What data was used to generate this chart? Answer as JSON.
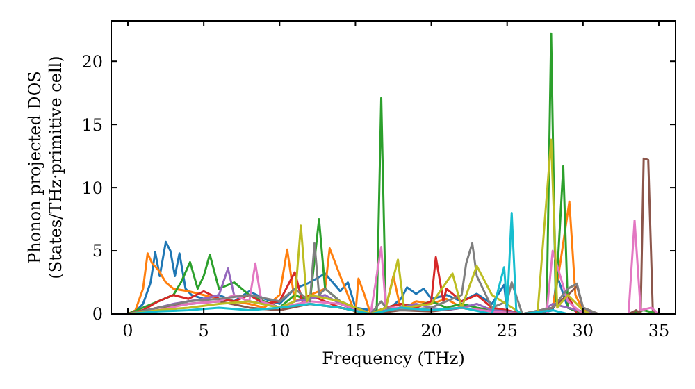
{
  "chart_data": {
    "type": "line",
    "xlabel": "Frequency (THz)",
    "ylabel": "Phonon projected DOS\n(States/THz·primitive cell)",
    "xlim": [
      -1.1,
      36.1
    ],
    "ylim": [
      0,
      23.2
    ],
    "xticks": [
      0,
      5,
      10,
      15,
      20,
      25,
      30,
      35
    ],
    "yticks": [
      0,
      5,
      10,
      15,
      20
    ],
    "line_style": "solid",
    "series": [
      {
        "color": "#1f77b4",
        "x": [
          0,
          0.5,
          1,
          1.5,
          1.8,
          2.1,
          2.5,
          2.8,
          3.1,
          3.4,
          3.8,
          4.2,
          5,
          6,
          7,
          8,
          9,
          10,
          11,
          12,
          13,
          14,
          14.5,
          15,
          16,
          17,
          18,
          18.4,
          19,
          19.5,
          20,
          21,
          22,
          23,
          24,
          24.8,
          25,
          26,
          27,
          28,
          28.3,
          29,
          30
        ],
        "values": [
          0,
          0.2,
          0.8,
          2.5,
          4.9,
          3,
          5.7,
          5,
          3,
          4.8,
          2,
          1.5,
          1.2,
          1.5,
          1,
          1.8,
          1.2,
          0.8,
          2,
          2.5,
          3.2,
          1.8,
          2.5,
          0.5,
          0.3,
          0.2,
          1.2,
          2.1,
          1.6,
          2,
          1.2,
          1.5,
          1,
          1.6,
          0.8,
          2.3,
          0.2,
          0,
          0,
          0.3,
          3,
          0.5,
          0
        ]
      },
      {
        "color": "#ff7f0e",
        "x": [
          0,
          0.5,
          1,
          1.3,
          1.6,
          2,
          2.5,
          3,
          4,
          5,
          6,
          7,
          8,
          9,
          10,
          10.5,
          11,
          12,
          13,
          13.3,
          14,
          15,
          15.2,
          15.6,
          16,
          17,
          17.5,
          18,
          19,
          20,
          21,
          22,
          23,
          24,
          25,
          26,
          27,
          28,
          28.5,
          29.1,
          29.5,
          30,
          31
        ],
        "values": [
          0,
          0.3,
          2,
          4.8,
          4,
          3.5,
          2.5,
          2,
          1.8,
          1.5,
          1.2,
          1,
          0.8,
          0.5,
          1.5,
          5.1,
          1,
          1.5,
          2,
          5.2,
          3,
          0,
          2.8,
          1.5,
          0,
          0.5,
          3,
          0.3,
          1,
          0.8,
          1.2,
          0.5,
          0.3,
          0.5,
          0.2,
          0,
          0,
          0.5,
          4,
          8.9,
          1.5,
          0.3,
          0
        ]
      },
      {
        "color": "#2ca02c",
        "x": [
          0,
          1,
          2,
          3,
          3.5,
          4.1,
          4.6,
          5,
          5.4,
          6,
          7,
          8,
          9,
          10,
          11,
          12,
          12.6,
          13,
          14,
          15,
          16,
          16.4,
          16.7,
          17,
          18,
          19,
          20,
          21,
          22,
          23,
          24,
          25,
          26,
          27,
          27.6,
          27.9,
          28.2,
          28.7,
          29,
          30,
          31,
          32,
          33,
          34,
          35
        ],
        "values": [
          0,
          0.5,
          1,
          1.5,
          2.5,
          4.1,
          2,
          3,
          4.7,
          2,
          2.5,
          1.5,
          1,
          0.5,
          1.5,
          1,
          7.5,
          2,
          1,
          0.3,
          0,
          0,
          17.1,
          0.5,
          0.8,
          0.6,
          1,
          0.5,
          0.8,
          0.5,
          0.3,
          0.2,
          0,
          0,
          0,
          22.2,
          1,
          11.7,
          0.5,
          0,
          0,
          0,
          0,
          0.3,
          0
        ]
      },
      {
        "color": "#d62728",
        "x": [
          0,
          1,
          2,
          3,
          4,
          5,
          6,
          7,
          8,
          9,
          10,
          11,
          11.5,
          12,
          13,
          14,
          15,
          16,
          17,
          18,
          19,
          20,
          20.3,
          20.8,
          21,
          22,
          23,
          24,
          25,
          26,
          27,
          28,
          29,
          29.6
        ],
        "values": [
          0,
          0.3,
          1,
          1.5,
          1.2,
          1.8,
          1.2,
          1,
          1.5,
          0.8,
          1,
          3.3,
          1,
          1.5,
          1,
          0.5,
          0.3,
          0,
          0.5,
          0.8,
          0.5,
          1,
          4.5,
          1,
          2,
          1,
          1.5,
          0.5,
          0.3,
          0,
          0,
          0.5,
          1.5,
          0
        ]
      },
      {
        "color": "#9467bd",
        "x": [
          0,
          1,
          2,
          3,
          4,
          5,
          6,
          6.6,
          7,
          8,
          9,
          10,
          11,
          12,
          13,
          14,
          15,
          16,
          17,
          18,
          19,
          20,
          21,
          22,
          23,
          24,
          25,
          26,
          27,
          28,
          29,
          30,
          31
        ],
        "values": [
          0,
          0.2,
          0.5,
          0.8,
          1,
          1.2,
          1.5,
          3.6,
          1.5,
          1,
          0.8,
          0.5,
          1,
          1.2,
          1.5,
          0.8,
          0.3,
          0,
          0.3,
          0.5,
          0.8,
          0.5,
          0.3,
          0.5,
          0.8,
          0.3,
          0.2,
          0,
          0,
          0.8,
          0.5,
          0.2,
          0
        ]
      },
      {
        "color": "#8c564b",
        "x": [
          0,
          2,
          4,
          6,
          8,
          10,
          12,
          14,
          16,
          18,
          20,
          22,
          24,
          26,
          28,
          29,
          29.6,
          30,
          31,
          32,
          33,
          33.5,
          33.8,
          34,
          34.3,
          34.6,
          35
        ],
        "values": [
          0,
          0.5,
          0.8,
          1,
          0.5,
          0.3,
          0.8,
          0.5,
          0,
          0.3,
          0.2,
          0.5,
          0.2,
          0,
          0.5,
          1.5,
          2.2,
          0.5,
          0,
          0,
          0,
          0.3,
          0,
          12.3,
          12.2,
          0.3,
          0
        ]
      },
      {
        "color": "#e377c2",
        "x": [
          0,
          2,
          4,
          6,
          7,
          8,
          8.4,
          8.8,
          10,
          12,
          14,
          16,
          16.7,
          17,
          18,
          20,
          22,
          24,
          26,
          27.6,
          28,
          29,
          30,
          33,
          33.4,
          33.8,
          34.5,
          35
        ],
        "values": [
          0,
          0.3,
          0.8,
          1,
          1.5,
          1,
          4,
          1,
          0.5,
          1,
          0.8,
          0,
          5.3,
          0.5,
          0.5,
          0.3,
          0.5,
          0.2,
          0,
          0,
          5,
          1,
          0,
          0,
          7.4,
          0.3,
          0.5,
          0
        ]
      },
      {
        "color": "#7f7f7f",
        "x": [
          0,
          2,
          4,
          6,
          8,
          10,
          11,
          12,
          12.3,
          12.6,
          13,
          14,
          16,
          16.7,
          17,
          18,
          20,
          22,
          22.3,
          22.7,
          23,
          24,
          25,
          25.3,
          26,
          28,
          29,
          29.6,
          30,
          31
        ],
        "values": [
          0,
          0.5,
          1,
          1.2,
          1.5,
          1,
          2,
          1,
          5.6,
          1.5,
          2,
          1,
          0,
          1,
          0.5,
          0.3,
          0.5,
          1.5,
          4,
          5.6,
          3,
          0.5,
          1,
          2.5,
          0,
          0.5,
          2,
          2.4,
          0.5,
          0
        ]
      },
      {
        "color": "#bcbd22",
        "x": [
          0,
          2,
          4,
          6,
          8,
          10,
          11,
          11.4,
          11.8,
          12,
          14,
          16,
          17,
          17.8,
          18.2,
          20,
          21.4,
          22,
          23,
          24,
          26,
          27,
          27.9,
          28.3,
          29,
          30,
          30.5
        ],
        "values": [
          0,
          0.3,
          0.5,
          0.8,
          1,
          0.5,
          1,
          7,
          1,
          1.5,
          1,
          0,
          0.5,
          4.3,
          0.5,
          0.8,
          3.2,
          0.5,
          3.8,
          1.5,
          0,
          0,
          13.8,
          0.5,
          1.5,
          0.3,
          0
        ]
      },
      {
        "color": "#17becf",
        "x": [
          0,
          2,
          4,
          6,
          8,
          10,
          12,
          14,
          16,
          18,
          20,
          22,
          24,
          24.8,
          25,
          25.3,
          25.6,
          26,
          28,
          29
        ],
        "values": [
          0,
          0.2,
          0.3,
          0.5,
          0.3,
          0.5,
          0.8,
          0.5,
          0,
          0.5,
          0.3,
          0.5,
          0,
          3.7,
          0.5,
          8,
          0.3,
          0,
          0.3,
          0
        ]
      }
    ]
  }
}
